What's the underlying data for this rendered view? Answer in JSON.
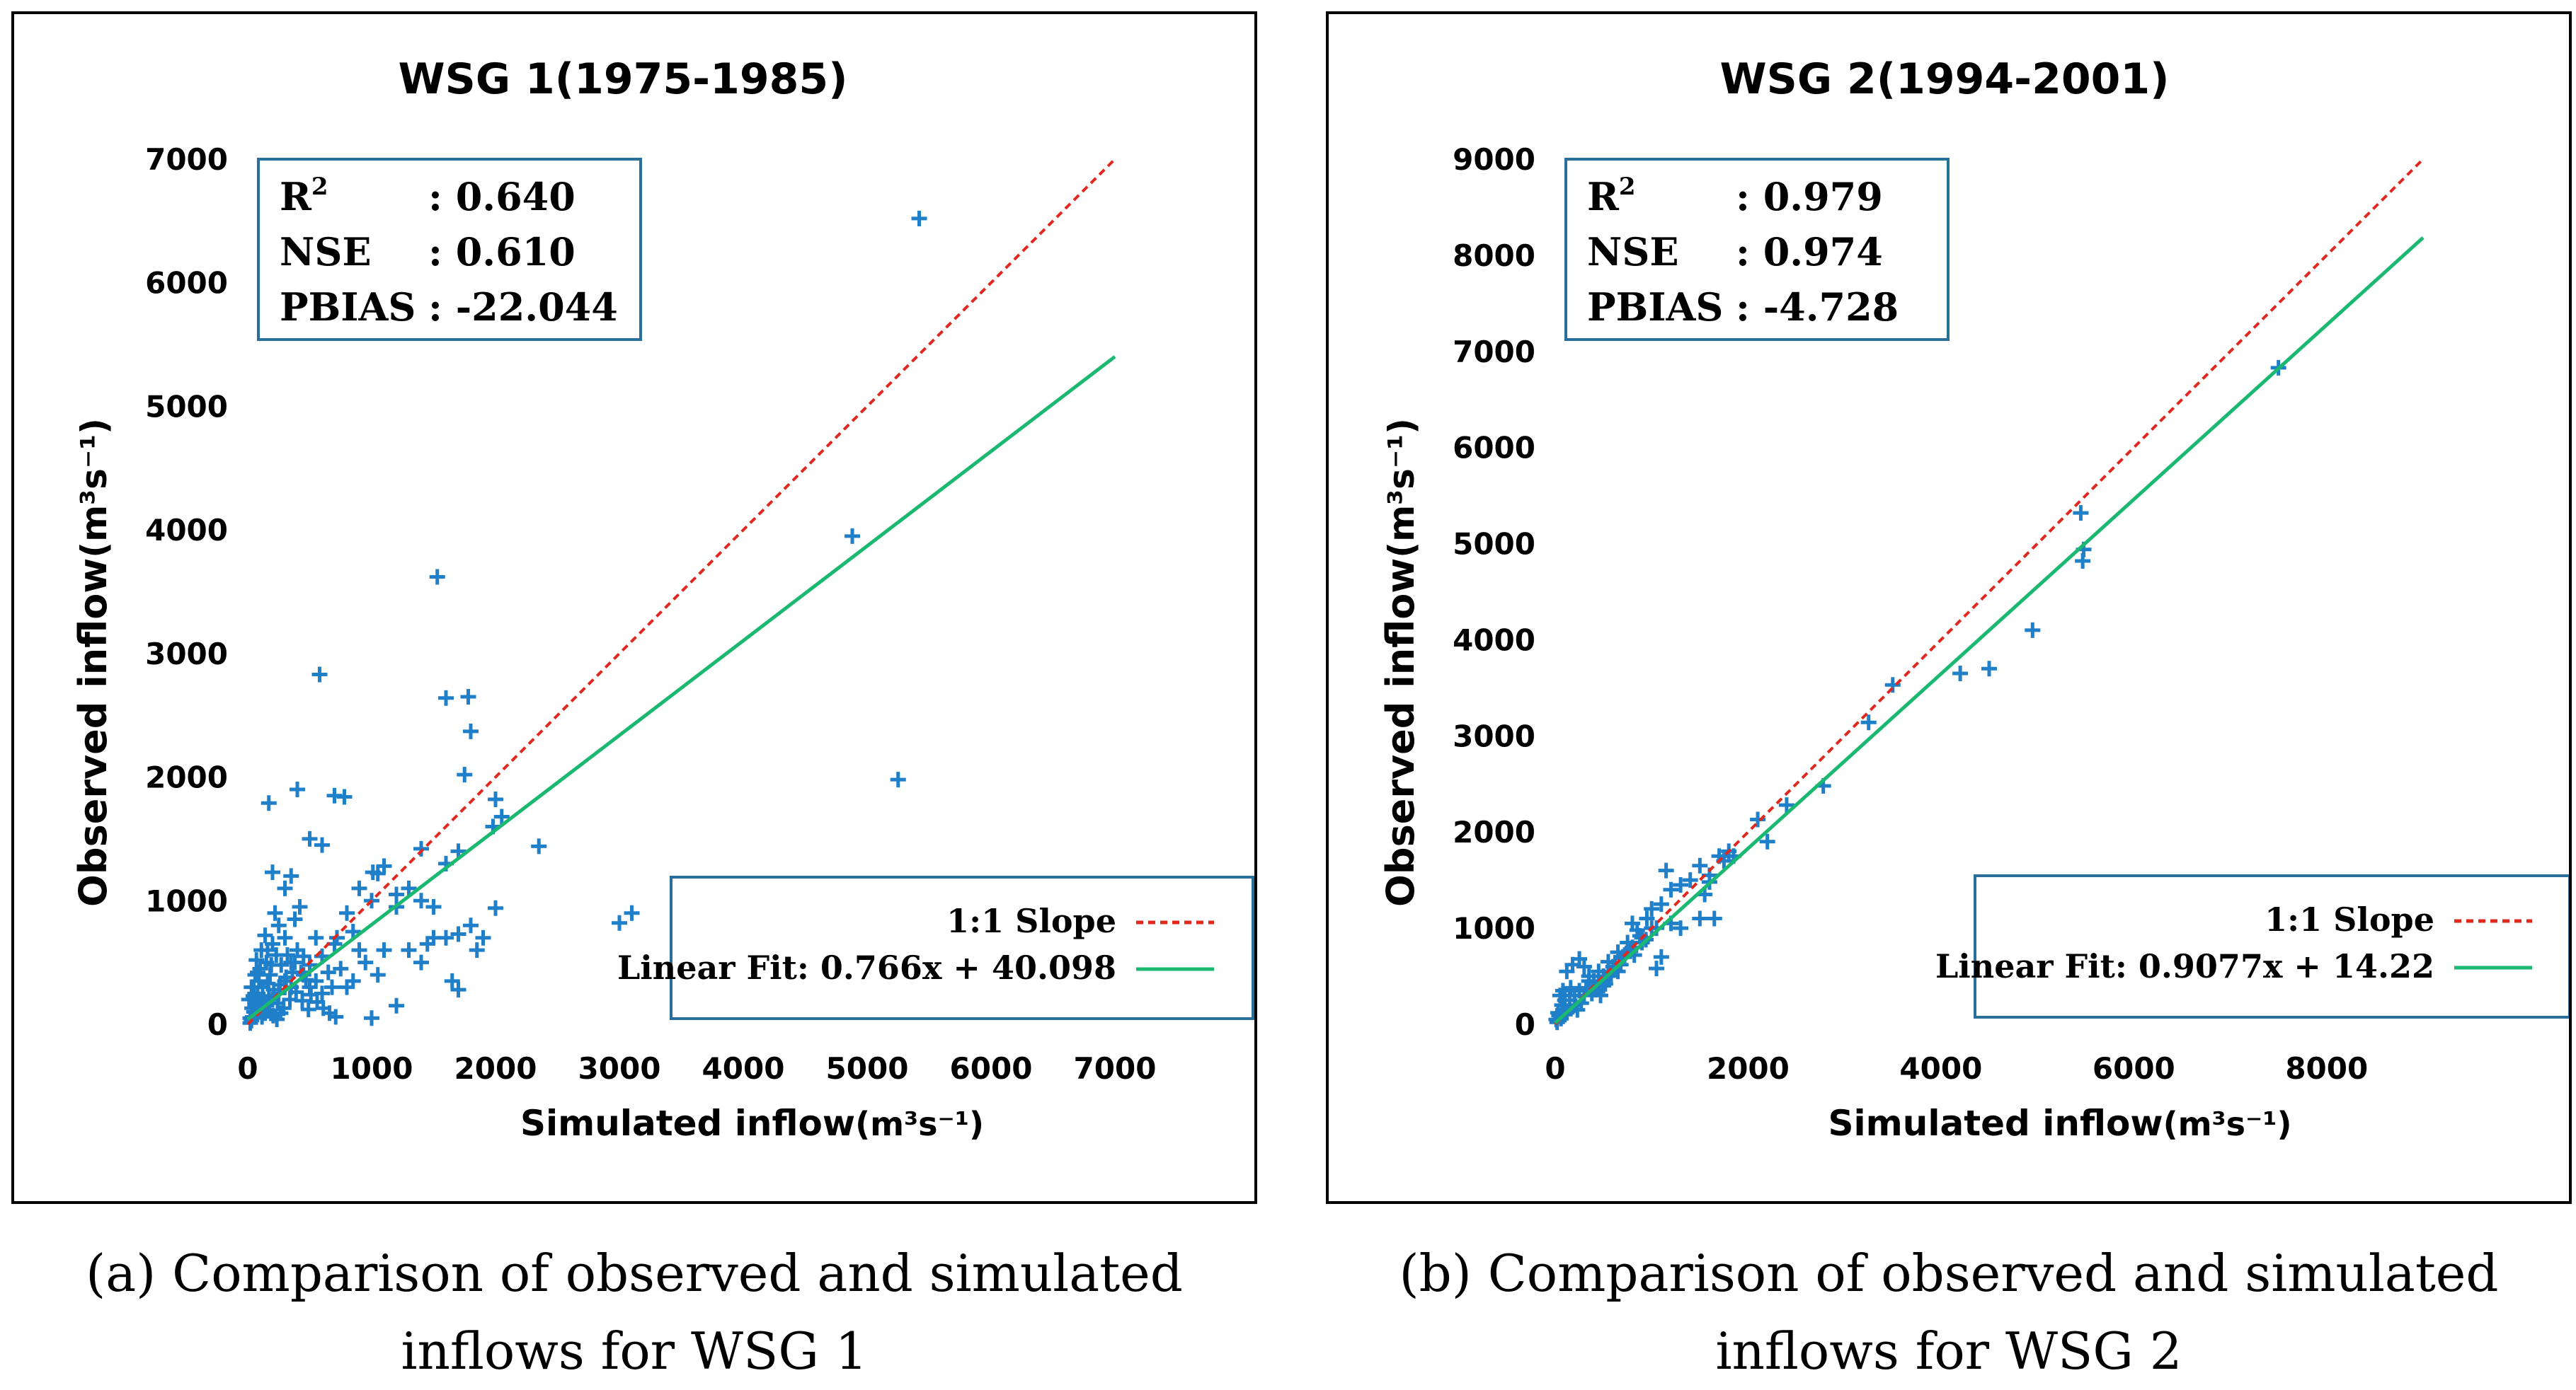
{
  "chart_data": [
    {
      "type": "scatter",
      "title": "WSG 1(1975-1985)",
      "xlabel": "Simulated inflow",
      "xunit": "(m³s⁻¹)",
      "ylabel": "Observed inflow",
      "yunit": "(m³s⁻¹)",
      "xlim": [
        0,
        7000
      ],
      "ylim": [
        0,
        7000
      ],
      "xticks": [
        0,
        1000,
        2000,
        3000,
        4000,
        5000,
        6000,
        7000
      ],
      "yticks": [
        0,
        1000,
        2000,
        3000,
        4000,
        5000,
        6000,
        7000
      ],
      "stats": [
        {
          "name": "R²",
          "value": ": 0.640"
        },
        {
          "name": "NSE",
          "value": ": 0.610"
        },
        {
          "name": "PBIAS",
          "value": ": -22.044"
        }
      ],
      "legend": [
        {
          "label": "1:1 Slope",
          "color": "#e0281e",
          "style": "dashed"
        },
        {
          "label": "Linear Fit: 0.766x + 40.098",
          "color": "#1ab870",
          "style": "solid"
        }
      ],
      "fit": {
        "slope": 0.766,
        "intercept": 40.098
      },
      "marker_color": "#1f7fc9",
      "points": [
        [
          5420,
          6520
        ],
        [
          4880,
          3950
        ],
        [
          5250,
          1980
        ],
        [
          1530,
          3620
        ],
        [
          580,
          2830
        ],
        [
          3000,
          820
        ],
        [
          3100,
          900
        ],
        [
          1600,
          2640
        ],
        [
          1780,
          2650
        ],
        [
          1800,
          2370
        ],
        [
          1750,
          2020
        ],
        [
          2000,
          1820
        ],
        [
          2050,
          1680
        ],
        [
          1980,
          1600
        ],
        [
          2350,
          1440
        ],
        [
          2000,
          940
        ],
        [
          1600,
          1300
        ],
        [
          1700,
          1400
        ],
        [
          1400,
          1420
        ],
        [
          1200,
          1050
        ],
        [
          1100,
          1280
        ],
        [
          1050,
          1220
        ],
        [
          1010,
          1230
        ],
        [
          780,
          1840
        ],
        [
          700,
          1850
        ],
        [
          170,
          1790
        ],
        [
          400,
          1900
        ],
        [
          200,
          1230
        ],
        [
          350,
          1200
        ],
        [
          500,
          1500
        ],
        [
          600,
          1450
        ],
        [
          300,
          1100
        ],
        [
          900,
          1100
        ],
        [
          1000,
          1000
        ],
        [
          1200,
          950
        ],
        [
          1300,
          1100
        ],
        [
          1400,
          1000
        ],
        [
          1500,
          950
        ],
        [
          1500,
          700
        ],
        [
          1600,
          700
        ],
        [
          1700,
          730
        ],
        [
          1450,
          650
        ],
        [
          1300,
          600
        ],
        [
          1400,
          500
        ],
        [
          1650,
          350
        ],
        [
          1700,
          280
        ],
        [
          1850,
          600
        ],
        [
          1900,
          700
        ],
        [
          1800,
          800
        ],
        [
          1000,
          50
        ],
        [
          1200,
          150
        ],
        [
          800,
          300
        ],
        [
          850,
          350
        ],
        [
          700,
          650
        ],
        [
          750,
          450
        ],
        [
          600,
          250
        ],
        [
          550,
          350
        ],
        [
          1100,
          600
        ],
        [
          1050,
          400
        ],
        [
          950,
          500
        ],
        [
          900,
          600
        ],
        [
          450,
          400
        ],
        [
          500,
          300
        ],
        [
          420,
          950
        ],
        [
          380,
          850
        ],
        [
          300,
          700
        ],
        [
          250,
          800
        ],
        [
          200,
          650
        ],
        [
          220,
          900
        ],
        [
          150,
          500
        ],
        [
          180,
          400
        ],
        [
          120,
          300
        ],
        [
          100,
          450
        ],
        [
          90,
          350
        ],
        [
          80,
          250
        ],
        [
          60,
          150
        ],
        [
          50,
          100
        ],
        [
          40,
          60
        ],
        [
          30,
          30
        ],
        [
          20,
          10
        ],
        [
          10,
          200
        ],
        [
          30,
          300
        ],
        [
          350,
          500
        ],
        [
          400,
          600
        ],
        [
          450,
          550
        ],
        [
          500,
          480
        ],
        [
          550,
          700
        ],
        [
          600,
          550
        ],
        [
          650,
          420
        ],
        [
          680,
          300
        ],
        [
          720,
          700
        ],
        [
          800,
          900
        ],
        [
          850,
          750
        ],
        [
          250,
          250
        ],
        [
          300,
          350
        ],
        [
          350,
          300
        ],
        [
          200,
          200
        ],
        [
          150,
          150
        ],
        [
          100,
          100
        ],
        [
          130,
          180
        ],
        [
          170,
          230
        ],
        [
          210,
          280
        ],
        [
          260,
          320
        ],
        [
          310,
          380
        ],
        [
          360,
          420
        ],
        [
          60,
          400
        ],
        [
          70,
          520
        ],
        [
          110,
          600
        ],
        [
          140,
          720
        ],
        [
          160,
          600
        ],
        [
          230,
          560
        ],
        [
          270,
          480
        ],
        [
          320,
          560
        ],
        [
          380,
          500
        ],
        [
          430,
          420
        ],
        [
          470,
          360
        ],
        [
          510,
          240
        ],
        [
          560,
          180
        ],
        [
          610,
          130
        ],
        [
          660,
          90
        ],
        [
          710,
          60
        ],
        [
          50,
          300
        ],
        [
          80,
          420
        ],
        [
          120,
          200
        ],
        [
          160,
          330
        ],
        [
          190,
          480
        ],
        [
          240,
          170
        ],
        [
          290,
          130
        ],
        [
          340,
          200
        ],
        [
          390,
          260
        ],
        [
          440,
          190
        ],
        [
          490,
          120
        ],
        [
          20,
          50
        ],
        [
          35,
          130
        ],
        [
          45,
          230
        ],
        [
          75,
          80
        ],
        [
          95,
          160
        ],
        [
          115,
          60
        ],
        [
          140,
          90
        ],
        [
          175,
          110
        ],
        [
          205,
          70
        ],
        [
          235,
          40
        ],
        [
          265,
          90
        ]
      ]
    },
    {
      "type": "scatter",
      "title": "WSG 2(1994-2001)",
      "xlabel": "Simulated inflow",
      "xunit": "(m³s⁻¹)",
      "ylabel": "Observed inflow",
      "yunit": "(m³s⁻¹)",
      "xlim": [
        0,
        9000
      ],
      "ylim": [
        0,
        9000
      ],
      "xticks": [
        0,
        2000,
        4000,
        6000,
        8000
      ],
      "yticks": [
        0,
        1000,
        2000,
        3000,
        4000,
        5000,
        6000,
        7000,
        8000,
        9000
      ],
      "stats": [
        {
          "name": "R²",
          "value": ": 0.979"
        },
        {
          "name": "NSE",
          "value": ": 0.974"
        },
        {
          "name": "PBIAS",
          "value": ": -4.728"
        }
      ],
      "legend": [
        {
          "label": "1:1 Slope",
          "color": "#e0281e",
          "style": "dashed"
        },
        {
          "label": "Linear Fit: 0.9077x + 14.22",
          "color": "#1ab870",
          "style": "solid"
        }
      ],
      "fit": {
        "slope": 0.9077,
        "intercept": 14.22
      },
      "marker_color": "#1f7fc9",
      "points": [
        [
          7500,
          6830
        ],
        [
          5450,
          5320
        ],
        [
          5480,
          4940
        ],
        [
          5470,
          4820
        ],
        [
          4950,
          4100
        ],
        [
          4500,
          3700
        ],
        [
          4200,
          3650
        ],
        [
          3500,
          3530
        ],
        [
          3250,
          3140
        ],
        [
          2780,
          2480
        ],
        [
          2400,
          2280
        ],
        [
          2200,
          1900
        ],
        [
          2100,
          2130
        ],
        [
          1800,
          1800
        ],
        [
          1750,
          1700
        ],
        [
          1600,
          1480
        ],
        [
          1550,
          1350
        ],
        [
          1500,
          1650
        ],
        [
          1400,
          1500
        ],
        [
          1300,
          1450
        ],
        [
          1200,
          1400
        ],
        [
          1150,
          1600
        ],
        [
          1100,
          1250
        ],
        [
          1050,
          1000
        ],
        [
          1000,
          1200
        ],
        [
          950,
          1100
        ],
        [
          900,
          900
        ],
        [
          850,
          980
        ],
        [
          800,
          800
        ],
        [
          750,
          850
        ],
        [
          700,
          700
        ],
        [
          650,
          750
        ],
        [
          600,
          600
        ],
        [
          550,
          650
        ],
        [
          500,
          500
        ],
        [
          450,
          550
        ],
        [
          400,
          400
        ],
        [
          350,
          450
        ],
        [
          300,
          300
        ],
        [
          250,
          350
        ],
        [
          200,
          200
        ],
        [
          150,
          250
        ],
        [
          100,
          100
        ],
        [
          80,
          150
        ],
        [
          60,
          60
        ],
        [
          40,
          90
        ],
        [
          20,
          20
        ],
        [
          10,
          50
        ],
        [
          120,
          550
        ],
        [
          250,
          680
        ],
        [
          180,
          620
        ],
        [
          300,
          600
        ],
        [
          350,
          500
        ],
        [
          400,
          450
        ],
        [
          450,
          420
        ],
        [
          500,
          400
        ],
        [
          550,
          500
        ],
        [
          650,
          550
        ],
        [
          1050,
          580
        ],
        [
          1100,
          700
        ],
        [
          1500,
          1100
        ],
        [
          1650,
          1100
        ],
        [
          1300,
          1000
        ],
        [
          1200,
          1050
        ],
        [
          1000,
          1000
        ],
        [
          900,
          850
        ],
        [
          800,
          1050
        ],
        [
          50,
          300
        ],
        [
          80,
          350
        ],
        [
          100,
          250
        ],
        [
          150,
          180
        ],
        [
          200,
          300
        ],
        [
          30,
          120
        ],
        [
          70,
          200
        ],
        [
          120,
          120
        ],
        [
          160,
          380
        ],
        [
          230,
          150
        ],
        [
          270,
          220
        ],
        [
          320,
          380
        ],
        [
          380,
          320
        ],
        [
          420,
          360
        ],
        [
          470,
          300
        ],
        [
          520,
          420
        ],
        [
          580,
          520
        ],
        [
          620,
          640
        ],
        [
          680,
          620
        ],
        [
          720,
          720
        ],
        [
          780,
          760
        ],
        [
          820,
          720
        ],
        [
          880,
          920
        ],
        [
          940,
          880
        ],
        [
          1600,
          1550
        ],
        [
          1700,
          1750
        ],
        [
          1850,
          1750
        ]
      ]
    }
  ],
  "captions": [
    {
      "line1": "(a) Comparison of observed and simulated",
      "line2": "inflows for WSG 1"
    },
    {
      "line1": "(b) Comparison of observed and simulated",
      "line2": "inflows for WSG 2"
    }
  ]
}
